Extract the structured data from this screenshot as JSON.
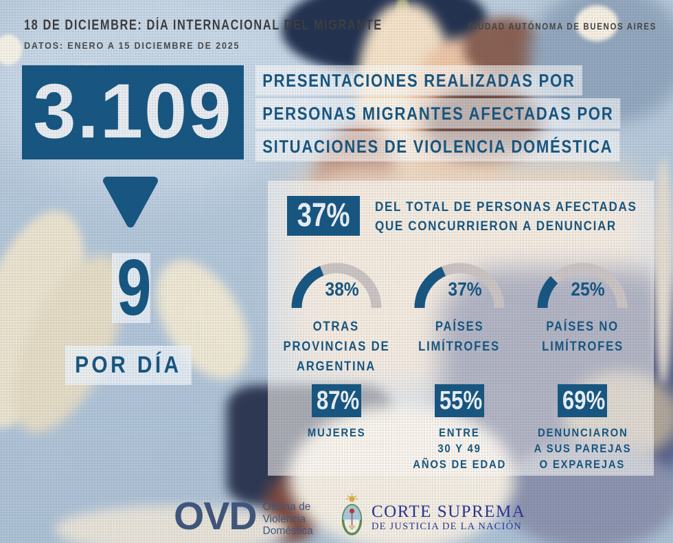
{
  "header": {
    "title": "18 DE DICIEMBRE: DÍA INTERNACIONAL DEL MIGRANTE",
    "subtitle": "DATOS: ENERO A 15 DICIEMBRE DE 2025",
    "city": "CIUDAD AUTÓNOMA DE BUENOS AIRES"
  },
  "headline": {
    "total": "3.109",
    "per_day_value": "9",
    "per_day_label": "POR DÍA",
    "description_lines": [
      "PRESENTACIONES REALIZADAS POR",
      "PERSONAS MIGRANTES AFECTADAS POR",
      "SITUACIONES DE VIOLENCIA DOMÉSTICA"
    ]
  },
  "chart_data": {
    "type": "gauge",
    "unit": "%",
    "range": [
      0,
      100
    ],
    "fill_color": "#175781",
    "track_color": "#ccc5c3",
    "highlight": {
      "value": 37,
      "display": "37%",
      "label_lines": [
        "DEL TOTAL DE PERSONAS AFECTADAS",
        "QUE CONCURRIERON A DENUNCIAR"
      ]
    },
    "gauges": [
      {
        "value": 38,
        "display": "38%",
        "label_lines": [
          "OTRAS",
          "PROVINCIAS DE",
          "ARGENTINA"
        ]
      },
      {
        "value": 37,
        "display": "37%",
        "label_lines": [
          "PAÍSES",
          "LIMÍTROFES"
        ]
      },
      {
        "value": 25,
        "display": "25%",
        "label_lines": [
          "PAÍSES NO",
          "LIMÍTROFES"
        ]
      }
    ],
    "stats": [
      {
        "value": 87,
        "display": "87%",
        "label_lines": [
          "MUJERES"
        ]
      },
      {
        "value": 55,
        "display": "55%",
        "label_lines": [
          "ENTRE",
          "30 Y 49",
          "AÑOS DE EDAD"
        ]
      },
      {
        "value": 69,
        "display": "69%",
        "label_lines": [
          "DENUNCIARON",
          "A SUS PAREJAS",
          "O EXPAREJAS"
        ]
      }
    ]
  },
  "footer": {
    "ovd_acronym": "OVD",
    "ovd_name_lines": [
      "Oficina de",
      "Violencia",
      "Doméstica"
    ],
    "court_name": "CORTE SUPREMA",
    "court_subtitle": "DE JUSTICIA DE LA NACIÓN"
  },
  "icons": {
    "arrow_down": "triangle-down",
    "crest": "argentina-coat-of-arms"
  },
  "colors": {
    "accent_blue": "#175781",
    "header_text": "#3e3e3e",
    "gauge_track": "#ccc5c3",
    "ovd_logo": "#41567b",
    "court_logo": "#2c3590",
    "panel_overlay": "rgba(251,248,243,0.6)"
  }
}
